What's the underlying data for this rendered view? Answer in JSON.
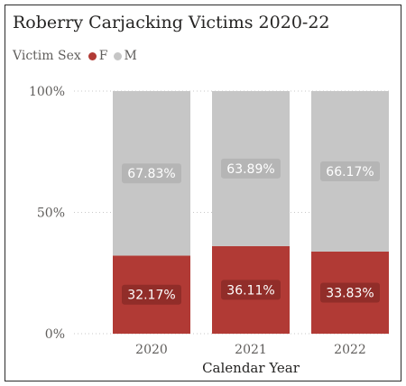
{
  "chart_data": {
    "type": "bar",
    "stacked": "100%",
    "title": "Roberry Carjacking Victims 2020-22",
    "legend_title": "Victim Sex",
    "legend_placement": "top-left",
    "categories": [
      "2020",
      "2021",
      "2022"
    ],
    "series": [
      {
        "name": "F",
        "values": [
          32.17,
          36.11,
          33.83
        ],
        "labels": [
          "32.17%",
          "36.11%",
          "33.83%"
        ],
        "color": "#b13a35"
      },
      {
        "name": "M",
        "values": [
          67.83,
          63.89,
          66.17
        ],
        "labels": [
          "67.83%",
          "63.89%",
          "66.17%"
        ],
        "color": "#c6c6c6"
      }
    ],
    "xlabel": "Calendar Year",
    "ylabel": "",
    "ylim": [
      0,
      100
    ],
    "yticks": [
      {
        "value": 0,
        "label": "0%"
      },
      {
        "value": 50,
        "label": "50%"
      },
      {
        "value": 100,
        "label": "100%"
      }
    ],
    "grid": "horizontal-dotted"
  }
}
